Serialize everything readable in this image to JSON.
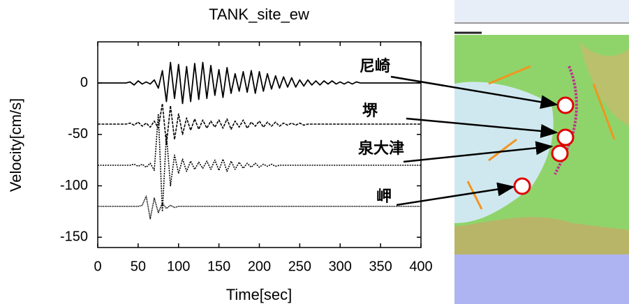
{
  "chart_data": {
    "type": "line",
    "title": "TANK_site_ew",
    "x_label": "Time[sec]",
    "y_label": "Velocity[cm/s]",
    "xlim": [
      0,
      400
    ],
    "xticks": [
      0,
      50,
      100,
      150,
      200,
      250,
      300,
      350,
      400
    ],
    "ylim": [
      -160,
      40
    ],
    "yticks": [
      0,
      -50,
      -100,
      -150
    ],
    "x": [
      0,
      5,
      10,
      15,
      20,
      25,
      30,
      35,
      40,
      45,
      50,
      55,
      60,
      65,
      70,
      75,
      80,
      85,
      90,
      95,
      100,
      105,
      110,
      115,
      120,
      125,
      130,
      135,
      140,
      145,
      150,
      155,
      160,
      165,
      170,
      175,
      180,
      185,
      190,
      195,
      200,
      205,
      210,
      215,
      220,
      225,
      230,
      235,
      240,
      245,
      250,
      255,
      260,
      265,
      270,
      275,
      280,
      285,
      290,
      295,
      300,
      305,
      310,
      315,
      320,
      325,
      330,
      335,
      340,
      345,
      350,
      355,
      360,
      365,
      370,
      375,
      380,
      385,
      390,
      395,
      400
    ],
    "series": [
      {
        "name": "尼崎",
        "color": "#000000",
        "values": [
          0,
          0,
          0,
          0,
          0,
          0,
          0,
          0,
          1,
          -2,
          2,
          -1,
          1,
          -1,
          3,
          -5,
          12,
          -18,
          20,
          -15,
          18,
          -20,
          16,
          -18,
          19,
          -16,
          20,
          -15,
          17,
          -12,
          13,
          -14,
          15,
          -10,
          9,
          -8,
          11,
          -9,
          12,
          -10,
          11,
          -8,
          9,
          -6,
          7,
          -5,
          6,
          -4,
          5,
          -4,
          3,
          -3,
          3,
          -2,
          2,
          -2,
          2,
          -1,
          2,
          -1,
          1,
          -1,
          1,
          -1,
          1,
          0,
          0,
          0,
          0,
          0,
          0,
          0,
          0,
          0,
          0,
          0,
          0,
          0,
          0,
          0,
          0
        ]
      },
      {
        "name": "堺",
        "color": "#000000",
        "values": [
          -40,
          -40,
          -40,
          -40,
          -40,
          -40,
          -40,
          -40,
          -39,
          -41,
          -38,
          -42,
          -39,
          -43,
          -37,
          -44,
          -20,
          -60,
          -22,
          -55,
          -30,
          -50,
          -34,
          -46,
          -35,
          -45,
          -36,
          -44,
          -37,
          -43,
          -36,
          -44,
          -35,
          -45,
          -37,
          -43,
          -36,
          -44,
          -38,
          -42,
          -37,
          -43,
          -38,
          -42,
          -38,
          -42,
          -39,
          -41,
          -39,
          -41,
          -39,
          -41,
          -40,
          -40,
          -40,
          -40,
          -40,
          -40,
          -40,
          -40,
          -40,
          -40,
          -40,
          -40,
          -40,
          -40,
          -40,
          -40,
          -40,
          -40,
          -40,
          -40,
          -40,
          -40,
          -40,
          -40,
          -40,
          -40,
          -40,
          -40,
          -40
        ]
      },
      {
        "name": "泉大津",
        "color": "#000000",
        "values": [
          -80,
          -80,
          -80,
          -80,
          -80,
          -80,
          -80,
          -80,
          -80,
          -79,
          -81,
          -79,
          -82,
          -78,
          -85,
          -30,
          -125,
          -50,
          -100,
          -70,
          -88,
          -74,
          -86,
          -76,
          -84,
          -77,
          -83,
          -76,
          -84,
          -75,
          -85,
          -74,
          -86,
          -76,
          -84,
          -77,
          -83,
          -78,
          -82,
          -78,
          -82,
          -79,
          -81,
          -79,
          -81,
          -80,
          -80,
          -80,
          -80,
          -80,
          -80,
          -80,
          -80,
          -80,
          -80,
          -80,
          -80,
          -80,
          -80,
          -80,
          -80,
          -80,
          -80,
          -80,
          -80,
          -80,
          -80,
          -80,
          -80,
          -80,
          -80,
          -80,
          -80,
          -80,
          -80,
          -80,
          -80,
          -80,
          -80,
          -80,
          -80
        ]
      },
      {
        "name": "岬",
        "color": "#000000",
        "values": [
          -120,
          -120,
          -120,
          -120,
          -120,
          -120,
          -120,
          -120,
          -120,
          -120,
          -120,
          -119,
          -110,
          -132,
          -112,
          -126,
          -117,
          -122,
          -119,
          -121,
          -120,
          -120,
          -120,
          -120,
          -120,
          -120,
          -120,
          -120,
          -120,
          -120,
          -120,
          -120,
          -120,
          -120,
          -120,
          -120,
          -120,
          -120,
          -120,
          -120,
          -120,
          -120,
          -120,
          -120,
          -120,
          -120,
          -120,
          -120,
          -120,
          -120,
          -120,
          -120,
          -120,
          -120,
          -120,
          -120,
          -120,
          -120,
          -120,
          -120,
          -120,
          -120,
          -120,
          -120,
          -120,
          -120,
          -120,
          -120,
          -120,
          -120,
          -120,
          -120,
          -120,
          -120,
          -120,
          -120,
          -120,
          -120,
          -120,
          -120,
          -120
        ]
      }
    ]
  }
}
